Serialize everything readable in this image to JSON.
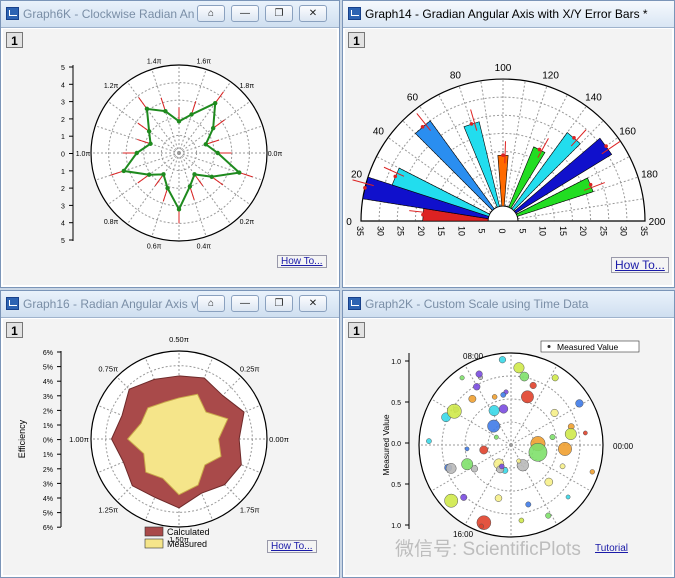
{
  "windows": [
    {
      "title": "Graph6K - Clockwise Radian An",
      "page": "1",
      "howto": "How To..."
    },
    {
      "title": "Graph14 - Gradian Angular Axis with X/Y Error Bars *",
      "page": "1",
      "howto": "How To..."
    },
    {
      "title": "Graph16 - Radian Angular Axis v",
      "page": "1",
      "howto": "How To..."
    },
    {
      "title": "Graph2K - Custom Scale using Time Data",
      "page": "1",
      "howto": "Tutorial"
    }
  ],
  "buttons": {
    "home": "⌂",
    "minimize": "—",
    "restore": "❐",
    "close": "✕"
  },
  "watermark": "微信号: ScientificPlots",
  "chart_data": [
    {
      "type": "line",
      "angular_ticks": [
        "1.4π",
        "1.6π",
        "1.2π",
        "1.8π",
        "1.0π",
        "0.0π",
        "0.8π",
        "0.2π",
        "0.6π",
        "0.4π"
      ],
      "radial_ticks": [
        "5",
        "4",
        "3",
        "2",
        "1",
        "0",
        "1",
        "2",
        "3",
        "4",
        "5"
      ],
      "series": [
        {
          "values": [
            1.8,
            2.3,
            3.5,
            2.4,
            1.6,
            2.2,
            3.6,
            2.3,
            1.5,
            2.0,
            3.2,
            2.1,
            1.5,
            2.1,
            3.3,
            2.4,
            1.7,
            2.1,
            3.1,
            2.5
          ]
        }
      ],
      "colors": {
        "line": "#1e8a1e",
        "error": "#dd2222"
      }
    },
    {
      "type": "bar",
      "angular_ticks": [
        "0",
        "20",
        "40",
        "60",
        "80",
        "100",
        "120",
        "140",
        "160",
        "180",
        "200"
      ],
      "radial_ticks": [
        "35",
        "30",
        "25",
        "20",
        "15",
        "10",
        "5",
        "0",
        "5",
        "10",
        "15",
        "20",
        "25",
        "30",
        "35"
      ],
      "series": [
        {
          "angle": 5,
          "value": 18,
          "color": "#dd2222"
        },
        {
          "angle": 15,
          "value": 35,
          "color": "#1010cc"
        },
        {
          "angle": 25,
          "value": 28,
          "color": "#22ddee"
        },
        {
          "angle": 55,
          "value": 30,
          "color": "#2a8ef0"
        },
        {
          "angle": 80,
          "value": 24,
          "color": "#22ddee"
        },
        {
          "angle": 100,
          "value": 14,
          "color": "#ff6a00"
        },
        {
          "angle": 130,
          "value": 18,
          "color": "#22dd22"
        },
        {
          "angle": 145,
          "value": 26,
          "color": "#22ddee"
        },
        {
          "angle": 160,
          "value": 31,
          "color": "#1010cc"
        },
        {
          "angle": 175,
          "value": 22,
          "color": "#22dd22"
        }
      ]
    },
    {
      "type": "area",
      "angular_ticks": [
        "0.50π",
        "0.25π",
        "0.75π",
        "1.00π",
        "0.00π",
        "1.25π",
        "1.75π",
        "1.50π"
      ],
      "radial_ticks": [
        "6%",
        "5%",
        "4%",
        "3%",
        "2%",
        "1%",
        "0%",
        "1%",
        "2%",
        "3%",
        "4%",
        "5%",
        "6%"
      ],
      "ylabel": "Efficiency",
      "series": [
        {
          "name": "Calculated",
          "color": "#a94a4a",
          "values": [
            4.3,
            4.5,
            4.2,
            4.8,
            4.1,
            4.6,
            4.4,
            4.0,
            4.7,
            4.3,
            4.5,
            4.1,
            4.6,
            4.2,
            4.8,
            4.4
          ]
        },
        {
          "name": "Measured",
          "color": "#f5e58a",
          "values": [
            2.8,
            3.3,
            2.6,
            3.6,
            2.7,
            3.1,
            2.5,
            3.4,
            3.8,
            2.9,
            3.2,
            2.6,
            3.5,
            2.8,
            3.0,
            2.7
          ]
        }
      ]
    },
    {
      "type": "scatter",
      "angular_ticks": [
        "08:00",
        "00:00",
        "16:00"
      ],
      "radial_ticks": [
        "1.0",
        "0.5",
        "0.0",
        "0.5",
        "1.0"
      ],
      "ylabel": "Measured Value",
      "legend": "Measured Value",
      "series": [
        {
          "name": "Measured Value"
        }
      ]
    }
  ]
}
